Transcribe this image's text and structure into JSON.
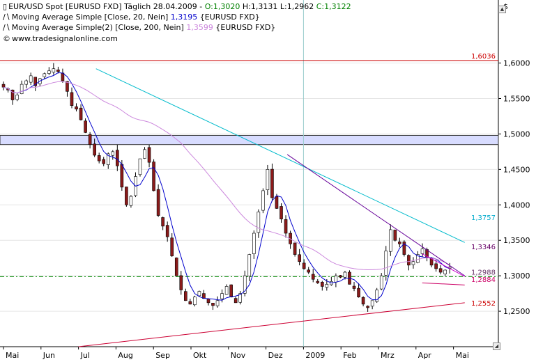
{
  "header": {
    "currency_symbol": "$",
    "legend": [
      {
        "icon": "candlestick-icon",
        "text": "EUR/USD Spot [EURUSD FXD]  Täglich 28.04.2009 - ",
        "values": [
          {
            "label": "O:",
            "value": "1,3020",
            "color": "#008000"
          },
          {
            "label": " H:",
            "value": "1,3131",
            "color": "#000000"
          },
          {
            "label": " L:",
            "value": "1,2962",
            "color": "#000000"
          },
          {
            "label": " C:",
            "value": "1,3122",
            "color": "#008000"
          }
        ]
      },
      {
        "icon": "line-icon",
        "text": "Moving Average Simple [Close, 20, Nein]",
        "value": "1,3195",
        "value_color": "#0000cc",
        "suffix": "{EURUSD FXD}"
      },
      {
        "icon": "line-icon",
        "text": "Moving Average Simple(2) [Close, 200, Nein]",
        "value": "1,3599",
        "value_color": "#cc88dd",
        "suffix": "{EURUSD FXD}"
      },
      {
        "icon": "copyright-icon",
        "text": "www.tradesignalonline.com"
      }
    ]
  },
  "chart_data": {
    "type": "candlestick",
    "instrument": "EUR/USD Spot",
    "x_ticks": [
      "Mai",
      "Jun",
      "Jul",
      "Aug",
      "Sep",
      "Okt",
      "Nov",
      "Dez",
      "2009",
      "Feb",
      "Mrz",
      "Apr",
      "Mai"
    ],
    "y_ticks": [
      "1,6000",
      "1,5500",
      "1,5000",
      "1,4500",
      "1,4000",
      "1,3500",
      "1,3000",
      "1,2500"
    ],
    "ylim": [
      1.2,
      1.63
    ],
    "price_labels": [
      {
        "value": 1.6036,
        "text": "1,6036",
        "color": "#cc0000"
      },
      {
        "value": 1.3757,
        "text": "1,3757",
        "color": "#00aacc"
      },
      {
        "value": 1.3346,
        "text": "1,3346",
        "color": "#660066"
      },
      {
        "value": 1.2988,
        "text": "1,2988",
        "color": "#663366"
      },
      {
        "value": 1.2884,
        "text": "1,2884",
        "color": "#cc0066"
      },
      {
        "value": 1.2552,
        "text": "1,2552",
        "color": "#cc0000"
      }
    ],
    "close_anchors": [
      [
        1.566,
        1.562,
        1.548,
        1.555,
        1.57,
        1.575,
        1.582,
        1.568,
        1.578,
        1.585,
        1.589,
        1.592,
        1.588,
        1.575,
        1.56,
        1.54,
        1.535,
        1.52,
        1.502,
        1.485,
        1.47,
        1.462,
        1.458,
        1.472,
        1.475,
        1.455,
        1.425,
        1.4,
        1.412,
        1.44,
        1.465,
        1.478,
        1.46,
        1.42,
        1.385,
        1.37,
        1.355,
        1.328,
        1.3,
        1.28,
        1.265,
        1.26,
        1.27,
        1.278,
        1.268,
        1.262,
        1.258,
        1.265,
        1.275,
        1.285,
        1.27,
        1.262,
        1.275,
        1.3,
        1.33,
        1.36,
        1.39,
        1.42,
        1.45,
        1.41,
        1.395,
        1.38,
        1.36,
        1.345,
        1.33,
        1.32,
        1.31,
        1.305,
        1.295,
        1.29,
        1.285,
        1.288,
        1.292,
        1.3,
        1.298,
        1.305,
        1.288,
        1.282,
        1.27,
        1.26,
        1.255,
        1.265,
        1.28,
        1.3,
        1.335,
        1.365,
        1.35,
        1.345,
        1.33,
        1.315,
        1.32,
        1.33,
        1.338,
        1.325,
        1.315,
        1.31,
        1.305,
        1.308,
        1.312
      ]
    ],
    "moving_averages": [
      {
        "name": "Moving Average Simple [Close, 20, Nein]",
        "value": "1,3195",
        "color": "#0000cc"
      },
      {
        "name": "Moving Average Simple(2) [Close, 200, Nein]",
        "value": "1,3599",
        "color": "#cc88dd"
      }
    ],
    "horizontal_lines": [
      {
        "value": 1.6036,
        "color": "#cc0000"
      },
      {
        "value": 1.2988,
        "color": "#008800",
        "style": "dash-dot"
      }
    ],
    "zone": {
      "from": 1.485,
      "to": 1.498,
      "color": "#d8dcff"
    },
    "trendlines": [
      {
        "from": [
          "2008-07-15",
          1.592
        ],
        "to": [
          "2009-05-10",
          1.347
        ],
        "color": "#00bbcc"
      },
      {
        "from": [
          "2008-12-18",
          1.471
        ],
        "to": [
          "2009-05-10",
          1.3
        ],
        "color": "#660099"
      },
      {
        "from": [
          "2008-07-01",
          1.2
        ],
        "to": [
          "2009-05-10",
          1.262
        ],
        "color": "#cc0033"
      },
      {
        "from": [
          "2009-04-06",
          1.331
        ],
        "to": [
          "2009-05-10",
          1.299
        ],
        "color": "#cc00cc"
      },
      {
        "from": [
          "2009-04-06",
          1.29
        ],
        "to": [
          "2009-05-10",
          1.287
        ],
        "color": "#cc0066"
      }
    ],
    "crosshair_date": "2009-01-01",
    "grid": true
  }
}
